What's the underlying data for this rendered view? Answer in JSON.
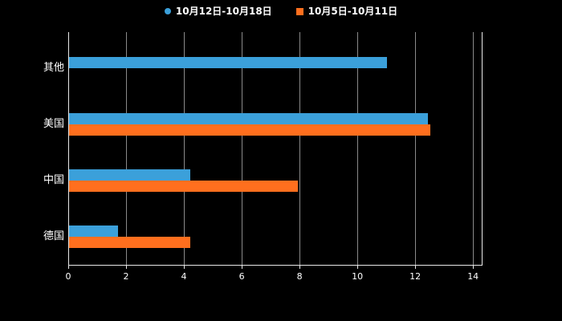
{
  "legend": {
    "items": [
      {
        "label": "10月12日-10月18日",
        "color": "#3ba0da",
        "marker": "circle"
      },
      {
        "label": "10月5日-10月11日",
        "color": "#ff6f1e",
        "marker": "square"
      }
    ]
  },
  "chart_data": {
    "type": "bar",
    "orientation": "horizontal",
    "title": "",
    "xlabel": "",
    "ylabel": "",
    "background": "#000000",
    "grid": true,
    "legend_position": "top",
    "categories": [
      "其他",
      "美国",
      "中国",
      "德国"
    ],
    "series": [
      {
        "name": "10月12日-10月18日",
        "color": "#3ba0da",
        "values": [
          11,
          12.4,
          4.2,
          1.7
        ]
      },
      {
        "name": "10月5日-10月11日",
        "color": "#ff6f1e",
        "values": [
          0,
          12.5,
          7.9,
          4.2
        ]
      }
    ],
    "x_ticks": [
      0,
      2,
      4,
      6,
      8,
      10,
      12,
      14
    ],
    "xlim": [
      0,
      14.3
    ]
  }
}
